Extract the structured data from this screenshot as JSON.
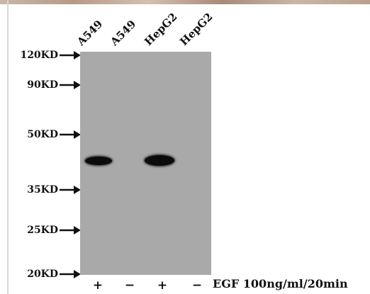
{
  "markers": [
    {
      "label": "120KD"
    },
    {
      "label": "90KD"
    },
    {
      "label": "50KD"
    },
    {
      "label": "35KD"
    },
    {
      "label": "25KD"
    },
    {
      "label": "20KD"
    }
  ],
  "lanes": [
    {
      "label": "A549",
      "treatment": "+"
    },
    {
      "label": "A549",
      "treatment": "−"
    },
    {
      "label": "HepG2",
      "treatment": "+"
    },
    {
      "label": "HepG2",
      "treatment": "−"
    }
  ],
  "treatment_label": "EGF 100ng/ml/20min",
  "colors": {
    "membrane": "#a9a9a9",
    "band": "#0b0b0b"
  }
}
